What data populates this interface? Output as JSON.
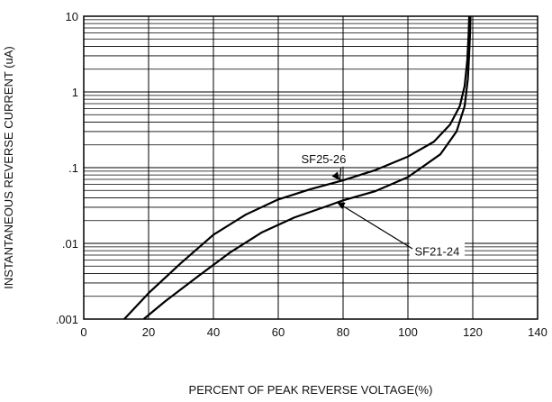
{
  "chart_data": {
    "type": "line",
    "xlabel": "PERCENT OF PEAK REVERSE VOLTAGE(%)",
    "ylabel": "INSTANTANEOUS REVERSE CURRENT (uA)",
    "xlim": [
      0,
      140
    ],
    "ylim": [
      0.001,
      10
    ],
    "y_scale": "log",
    "x_ticks": [
      0,
      20,
      40,
      60,
      80,
      100,
      120,
      140
    ],
    "x_tick_labels": [
      "0",
      "20",
      "40",
      "60",
      "80",
      "100",
      "120",
      "140"
    ],
    "y_ticks": [
      0.001,
      0.01,
      0.1,
      1,
      10
    ],
    "y_tick_labels": [
      ".001",
      ".01",
      ".1",
      "1",
      "10"
    ],
    "grid": true,
    "series": [
      {
        "name": "SF25-26",
        "x": [
          12.5,
          20,
          30,
          40,
          50,
          60,
          70,
          80,
          90,
          100,
          108,
          113,
          116,
          117.5,
          118.3,
          118.7,
          118.9
        ],
        "y": [
          0.001,
          0.0022,
          0.0055,
          0.013,
          0.024,
          0.038,
          0.052,
          0.068,
          0.093,
          0.14,
          0.22,
          0.37,
          0.65,
          1.2,
          2.6,
          5.5,
          10
        ]
      },
      {
        "name": "SF21-24",
        "x": [
          18.5,
          25,
          35,
          45,
          55,
          65,
          75,
          80,
          90,
          100,
          110,
          115,
          117.5,
          118.5,
          118.9,
          119.2,
          119.3
        ],
        "y": [
          0.001,
          0.0017,
          0.0036,
          0.0075,
          0.014,
          0.022,
          0.031,
          0.037,
          0.049,
          0.075,
          0.15,
          0.3,
          0.65,
          1.5,
          3.2,
          6.5,
          10
        ]
      }
    ],
    "annotations": [
      {
        "text": "SF25-26",
        "label_at": [
          74,
          0.125
        ],
        "arrow_to": [
          79,
          0.068
        ]
      },
      {
        "text": "SF21-24",
        "label_at": [
          109,
          0.0075
        ],
        "arrow_to": [
          78,
          0.035
        ]
      }
    ]
  }
}
